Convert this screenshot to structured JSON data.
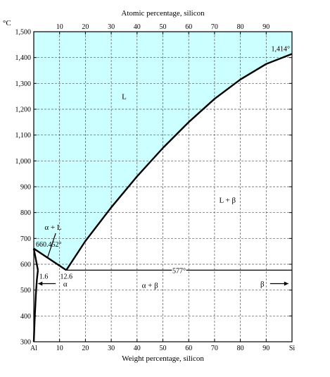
{
  "chart_data": {
    "type": "line",
    "title": "",
    "xlabel": "Weight percentage, silicon",
    "x2label": "Atomic percentage, silicon",
    "ylabel": "°C",
    "xlim": [
      0,
      100
    ],
    "ylim": [
      300,
      1500
    ],
    "x_ticks": [
      0,
      10,
      20,
      30,
      40,
      50,
      60,
      70,
      80,
      90,
      100
    ],
    "x_tick_labels": [
      "Al",
      "10",
      "20",
      "30",
      "40",
      "50",
      "60",
      "70",
      "80",
      "90",
      "Si"
    ],
    "x2_ticks": [
      10,
      20,
      30,
      40,
      50,
      60,
      70,
      80,
      90
    ],
    "x2_tick_labels": [
      "10",
      "20",
      "30",
      "40",
      "50",
      "60",
      "70",
      "80",
      "90"
    ],
    "y_ticks": [
      300,
      400,
      500,
      600,
      700,
      800,
      900,
      1000,
      1100,
      1200,
      1300,
      1400,
      1500
    ],
    "y_tick_labels": [
      "300",
      "400",
      "500",
      "600",
      "700",
      "800",
      "900",
      "1,000",
      "1,100",
      "1,200",
      "1,300",
      "1,400",
      "1,500"
    ],
    "grid": true,
    "liquid_fill_color": "#ccffff",
    "series": [
      {
        "x": [
          12.6,
          20,
          30,
          40,
          50,
          60,
          70,
          80,
          90,
          100
        ],
        "y": [
          577,
          690,
          820,
          940,
          1050,
          1150,
          1240,
          1315,
          1375,
          1414
        ]
      },
      {
        "x": [
          0,
          12.6
        ],
        "y": [
          660.452,
          577
        ]
      },
      {
        "x": [
          12.6,
          100
        ],
        "y": [
          577,
          577
        ]
      },
      {
        "x": [
          0,
          1.6
        ],
        "y": [
          660.452,
          577
        ]
      },
      {
        "x": [
          1.6,
          1.2,
          0.8,
          0.4,
          0
        ],
        "y": [
          577,
          540,
          480,
          400,
          300
        ]
      }
    ],
    "annotations": [
      {
        "text": "660.452°",
        "x": 0,
        "y": 660.452
      },
      {
        "text": "1,414°",
        "x": 100,
        "y": 1414
      },
      {
        "text": "577°",
        "x": 55,
        "y": 577
      },
      {
        "text": "1.6",
        "x": 1.6,
        "y": 577
      },
      {
        "text": "12.6",
        "x": 12.6,
        "y": 577
      }
    ],
    "regions": [
      {
        "label": "L",
        "x": 35,
        "y": 1250
      },
      {
        "label": "L + β",
        "x": 75,
        "y": 850
      },
      {
        "label": "α + L",
        "x": 7.5,
        "y": 745
      },
      {
        "label": "α + β",
        "x": 45,
        "y": 520
      },
      {
        "label": "α",
        "x": 4,
        "y": 525
      },
      {
        "label": "β",
        "x": 96,
        "y": 525
      }
    ]
  }
}
